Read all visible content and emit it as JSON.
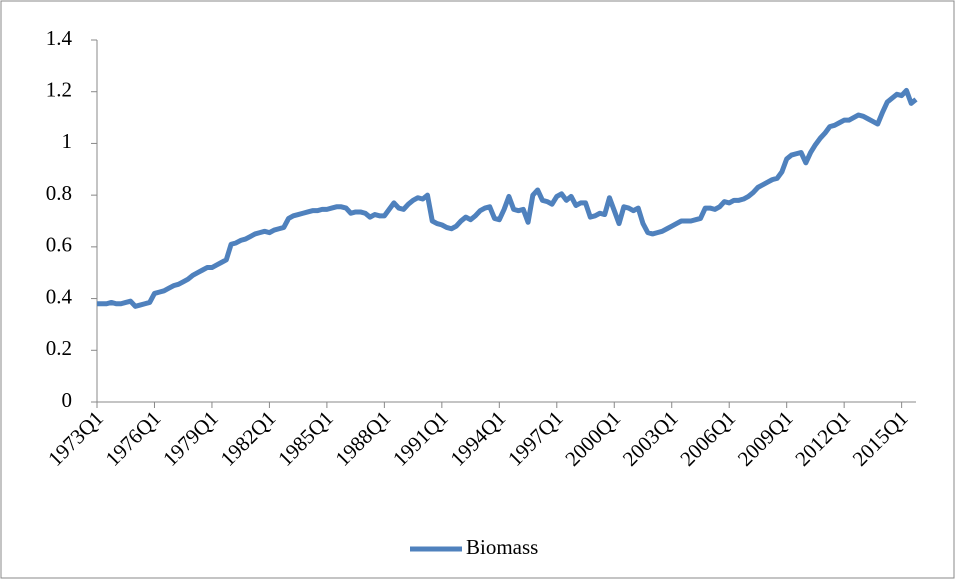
{
  "chart_data": {
    "type": "line",
    "categories": [
      "1973Q1",
      null,
      null,
      null,
      null,
      null,
      null,
      null,
      null,
      null,
      null,
      null,
      "1976Q1",
      null,
      null,
      null,
      null,
      null,
      null,
      null,
      null,
      null,
      null,
      null,
      "1979Q1",
      null,
      null,
      null,
      null,
      null,
      null,
      null,
      null,
      null,
      null,
      null,
      "1982Q1",
      null,
      null,
      null,
      null,
      null,
      null,
      null,
      null,
      null,
      null,
      null,
      "1985Q1",
      null,
      null,
      null,
      null,
      null,
      null,
      null,
      null,
      null,
      null,
      null,
      "1988Q1",
      null,
      null,
      null,
      null,
      null,
      null,
      null,
      null,
      null,
      null,
      null,
      "1991Q1",
      null,
      null,
      null,
      null,
      null,
      null,
      null,
      null,
      null,
      null,
      null,
      "1994Q1",
      null,
      null,
      null,
      null,
      null,
      null,
      null,
      null,
      null,
      null,
      null,
      "1997Q1",
      null,
      null,
      null,
      null,
      null,
      null,
      null,
      null,
      null,
      null,
      null,
      "2000Q1",
      null,
      null,
      null,
      null,
      null,
      null,
      null,
      null,
      null,
      null,
      null,
      "2003Q1",
      null,
      null,
      null,
      null,
      null,
      null,
      null,
      null,
      null,
      null,
      null,
      "2006Q1",
      null,
      null,
      null,
      null,
      null,
      null,
      null,
      null,
      null,
      null,
      null,
      "2009Q1",
      null,
      null,
      null,
      null,
      null,
      null,
      null,
      null,
      null,
      null,
      null,
      "2012Q1",
      null,
      null,
      null,
      null,
      null,
      null,
      null,
      null,
      null,
      null,
      null,
      "2015Q1",
      null,
      null,
      null
    ],
    "series": [
      {
        "name": "Biomass",
        "color": "#4f81bd",
        "values": [
          0.38,
          0.38,
          0.38,
          0.385,
          0.38,
          0.38,
          0.385,
          0.39,
          0.37,
          0.375,
          0.38,
          0.385,
          0.42,
          0.425,
          0.43,
          0.44,
          0.45,
          0.455,
          0.465,
          0.475,
          0.49,
          0.5,
          0.51,
          0.52,
          0.52,
          0.53,
          0.54,
          0.55,
          0.61,
          0.615,
          0.625,
          0.63,
          0.64,
          0.65,
          0.655,
          0.66,
          0.655,
          0.665,
          0.67,
          0.675,
          0.71,
          0.72,
          0.725,
          0.73,
          0.735,
          0.74,
          0.74,
          0.745,
          0.745,
          0.75,
          0.755,
          0.755,
          0.75,
          0.73,
          0.735,
          0.735,
          0.73,
          0.715,
          0.725,
          0.72,
          0.72,
          0.745,
          0.77,
          0.75,
          0.745,
          0.765,
          0.78,
          0.79,
          0.785,
          0.8,
          0.7,
          0.69,
          0.685,
          0.675,
          0.67,
          0.68,
          0.7,
          0.715,
          0.705,
          0.72,
          0.74,
          0.75,
          0.755,
          0.71,
          0.705,
          0.745,
          0.795,
          0.745,
          0.74,
          0.745,
          0.695,
          0.8,
          0.82,
          0.78,
          0.775,
          0.765,
          0.795,
          0.805,
          0.78,
          0.795,
          0.76,
          0.77,
          0.77,
          0.715,
          0.72,
          0.73,
          0.725,
          0.79,
          0.74,
          0.69,
          0.755,
          0.75,
          0.74,
          0.75,
          0.69,
          0.655,
          0.65,
          0.655,
          0.66,
          0.67,
          0.68,
          0.69,
          0.7,
          0.7,
          0.7,
          0.705,
          0.71,
          0.75,
          0.75,
          0.745,
          0.755,
          0.775,
          0.77,
          0.78,
          0.78,
          0.785,
          0.795,
          0.81,
          0.83,
          0.84,
          0.85,
          0.86,
          0.865,
          0.89,
          0.94,
          0.955,
          0.96,
          0.965,
          0.925,
          0.965,
          0.995,
          1.02,
          1.04,
          1.065,
          1.07,
          1.08,
          1.09,
          1.09,
          1.1,
          1.11,
          1.105,
          1.095,
          1.085,
          1.075,
          1.12,
          1.16,
          1.175,
          1.19,
          1.185,
          1.205,
          1.155,
          1.17
        ]
      }
    ],
    "ylim": [
      0,
      1.4
    ],
    "yticks": [
      0,
      0.2,
      0.4,
      0.6,
      0.8,
      1,
      1.2,
      1.4
    ],
    "legend": "bottom"
  }
}
